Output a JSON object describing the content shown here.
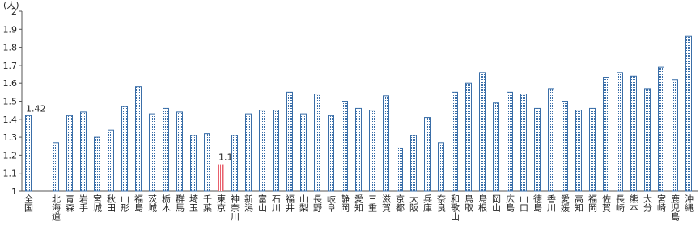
{
  "chart_data": {
    "type": "bar",
    "y_label": "(人)",
    "categories": [
      "全国",
      null,
      "北海道",
      "青森",
      "岩手",
      "宮城",
      "秋田",
      "山形",
      "福島",
      "茨城",
      "栃木",
      "群馬",
      "埼玉",
      "千葉",
      "東京",
      "神奈川",
      "新潟",
      "富山",
      "石川",
      "福井",
      "山梨",
      "長野",
      "岐阜",
      "静岡",
      "愛知",
      "三重",
      "滋賀",
      "京都",
      "大阪",
      "兵庫",
      "奈良",
      "和歌山",
      "鳥取",
      "島根",
      "岡山",
      "広島",
      "山口",
      "徳島",
      "香川",
      "愛媛",
      "高知",
      "福岡",
      "佐賀",
      "長崎",
      "熊本",
      "大分",
      "宮崎",
      "鹿児島",
      "沖縄"
    ],
    "values": [
      1.42,
      null,
      1.27,
      1.42,
      1.44,
      1.3,
      1.34,
      1.47,
      1.58,
      1.43,
      1.46,
      1.44,
      1.31,
      1.32,
      1.15,
      1.31,
      1.43,
      1.45,
      1.45,
      1.55,
      1.43,
      1.54,
      1.42,
      1.5,
      1.46,
      1.45,
      1.53,
      1.24,
      1.31,
      1.41,
      1.27,
      1.55,
      1.6,
      1.66,
      1.49,
      1.55,
      1.54,
      1.46,
      1.57,
      1.5,
      1.45,
      1.46,
      1.63,
      1.66,
      1.64,
      1.57,
      1.69,
      1.62,
      1.86
    ],
    "color": "#3a6ea8",
    "highlight": {
      "index": 14,
      "color": "#e8606c"
    },
    "labeled": [
      0,
      14
    ],
    "ylim": [
      1,
      2
    ],
    "yticks": [
      1,
      1.1,
      1.2,
      1.3,
      1.4,
      1.5,
      1.6,
      1.7,
      1.8,
      1.9,
      2
    ]
  }
}
